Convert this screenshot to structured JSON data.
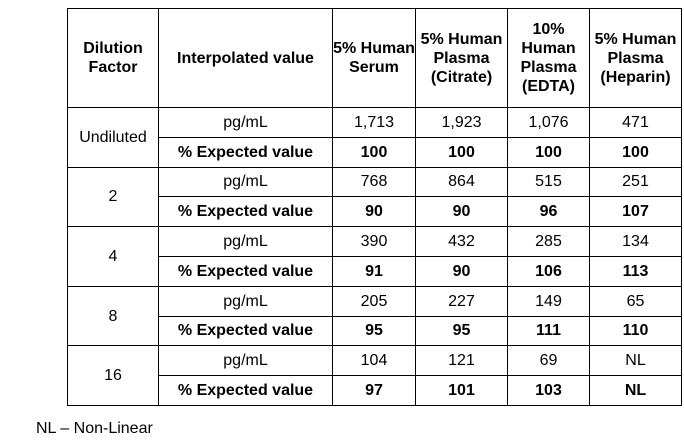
{
  "table": {
    "headers": [
      "Dilution Factor",
      "Interpolated value",
      "5% Human Serum",
      "5% Human Plasma (Citrate)",
      "10% Human Plasma (EDTA)",
      "5% Human Plasma (Heparin)"
    ],
    "groups": [
      {
        "dilution": "Undiluted",
        "rows": [
          {
            "label": "pg/mL",
            "values": [
              "1,713",
              "1,923",
              "1,076",
              "471"
            ]
          },
          {
            "label": "% Expected value",
            "values": [
              "100",
              "100",
              "100",
              "100"
            ]
          }
        ]
      },
      {
        "dilution": "2",
        "rows": [
          {
            "label": "pg/mL",
            "values": [
              "768",
              "864",
              "515",
              "251"
            ]
          },
          {
            "label": "% Expected value",
            "values": [
              "90",
              "90",
              "96",
              "107"
            ]
          }
        ]
      },
      {
        "dilution": "4",
        "rows": [
          {
            "label": "pg/mL",
            "values": [
              "390",
              "432",
              "285",
              "134"
            ]
          },
          {
            "label": "% Expected value",
            "values": [
              "91",
              "90",
              "106",
              "113"
            ]
          }
        ]
      },
      {
        "dilution": "8",
        "rows": [
          {
            "label": "pg/mL",
            "values": [
              "205",
              "227",
              "149",
              "65"
            ]
          },
          {
            "label": "% Expected value",
            "values": [
              "95",
              "95",
              "111",
              "110"
            ]
          }
        ]
      },
      {
        "dilution": "16",
        "rows": [
          {
            "label": "pg/mL",
            "values": [
              "104",
              "121",
              "69",
              "NL"
            ]
          },
          {
            "label": "% Expected value",
            "values": [
              "97",
              "101",
              "103",
              "NL"
            ]
          }
        ]
      }
    ]
  },
  "footnote": "NL – Non-Linear"
}
